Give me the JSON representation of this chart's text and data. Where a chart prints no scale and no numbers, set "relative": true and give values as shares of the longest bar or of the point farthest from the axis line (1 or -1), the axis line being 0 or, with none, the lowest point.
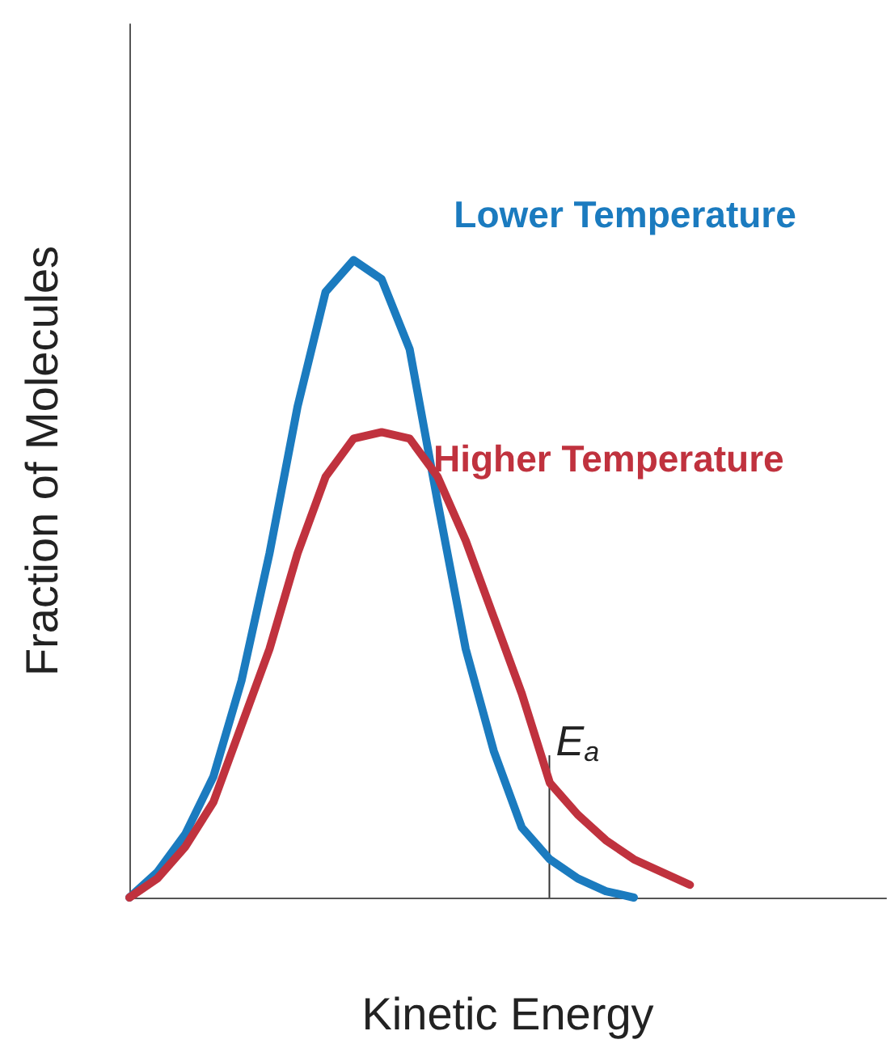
{
  "chart_data": {
    "type": "line",
    "relative": true,
    "xlabel": "Kinetic Energy",
    "ylabel": "Fraction of Molecules",
    "categories": [
      null,
      null,
      null,
      null,
      null,
      null,
      null,
      null,
      null,
      null,
      null,
      null,
      null,
      null,
      null,
      null,
      null,
      null,
      null,
      null,
      null,
      null,
      null,
      null,
      null,
      null,
      null,
      null
    ],
    "series": [
      {
        "name": "Lower Temperature",
        "color": "#1b7bbf",
        "values": [
          0,
          0.04,
          0.1,
          0.19,
          0.34,
          0.54,
          0.77,
          0.95,
          1,
          0.97,
          0.86,
          0.62,
          0.39,
          0.23,
          0.11,
          0.06,
          0.03,
          0.01,
          0,
          null,
          null,
          null,
          null,
          null,
          null,
          null,
          null,
          null
        ]
      },
      {
        "name": "Higher Temperature",
        "color": "#c0323e",
        "values": [
          0,
          0.03,
          0.08,
          0.15,
          0.27,
          0.39,
          0.54,
          0.66,
          0.72,
          0.73,
          0.72,
          0.66,
          0.56,
          0.44,
          0.32,
          0.18,
          0.13,
          0.09,
          0.06,
          0.04,
          0.02,
          null,
          null,
          null,
          null,
          null,
          null,
          null
        ]
      }
    ],
    "annotations": [
      "E$_{a}$"
    ],
    "legend": false,
    "grid": false,
    "marker": "none",
    "line_style": "solid"
  }
}
